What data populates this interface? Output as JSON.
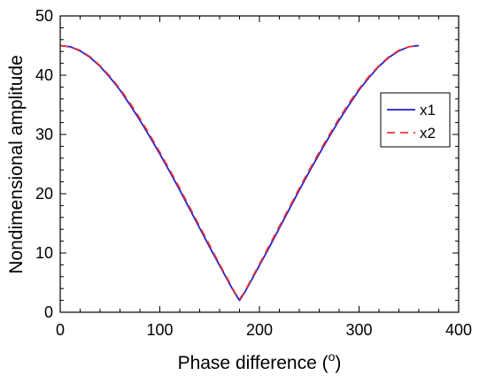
{
  "chart_data": {
    "type": "line",
    "xlabel": "Phase difference (",
    "xlabel_unit_sup": "o",
    "xlabel_close": ")",
    "ylabel": "Nondimensional amplitude",
    "xlim": [
      0,
      400
    ],
    "ylim": [
      0,
      50
    ],
    "xticks": [
      0,
      100,
      200,
      300,
      400
    ],
    "yticks": [
      0,
      10,
      20,
      30,
      40,
      50
    ],
    "x_minor_step": 20,
    "y_minor_step": 2,
    "grid": false,
    "legend_position": "right",
    "series": [
      {
        "name": "x1",
        "color": "#1f1fd0",
        "dash": "solid",
        "x": [
          0,
          10,
          20,
          30,
          40,
          50,
          60,
          70,
          80,
          90,
          100,
          110,
          120,
          130,
          140,
          150,
          160,
          170,
          175,
          180,
          185,
          190,
          200,
          210,
          220,
          230,
          240,
          250,
          260,
          270,
          280,
          290,
          300,
          310,
          320,
          330,
          340,
          350,
          360
        ],
        "values": [
          45.0,
          44.8,
          44.1,
          43.0,
          41.5,
          39.6,
          37.5,
          35.0,
          32.4,
          29.6,
          26.7,
          23.7,
          20.6,
          17.4,
          14.2,
          11.0,
          7.9,
          4.8,
          3.3,
          2.0,
          3.3,
          4.8,
          7.9,
          11.0,
          14.2,
          17.4,
          20.6,
          23.7,
          26.7,
          29.6,
          32.4,
          35.0,
          37.5,
          39.6,
          41.5,
          43.0,
          44.1,
          44.8,
          45.0
        ]
      },
      {
        "name": "x2",
        "color": "#e8303a",
        "dash": "dashed",
        "x": [
          0,
          10,
          20,
          30,
          40,
          50,
          60,
          70,
          80,
          90,
          100,
          110,
          120,
          130,
          140,
          150,
          160,
          170,
          175,
          180,
          185,
          190,
          200,
          210,
          220,
          230,
          240,
          250,
          260,
          270,
          280,
          290,
          300,
          310,
          320,
          330,
          340,
          350,
          360
        ],
        "values": [
          45.0,
          44.8,
          44.2,
          43.1,
          41.6,
          39.8,
          37.7,
          35.3,
          32.7,
          29.9,
          27.0,
          24.0,
          20.9,
          17.7,
          14.5,
          11.3,
          8.1,
          5.0,
          3.4,
          2.2,
          3.4,
          5.0,
          8.1,
          11.3,
          14.5,
          17.7,
          20.9,
          24.0,
          27.0,
          29.9,
          32.7,
          35.3,
          37.7,
          39.8,
          41.6,
          43.1,
          44.2,
          44.8,
          45.0
        ]
      }
    ]
  }
}
